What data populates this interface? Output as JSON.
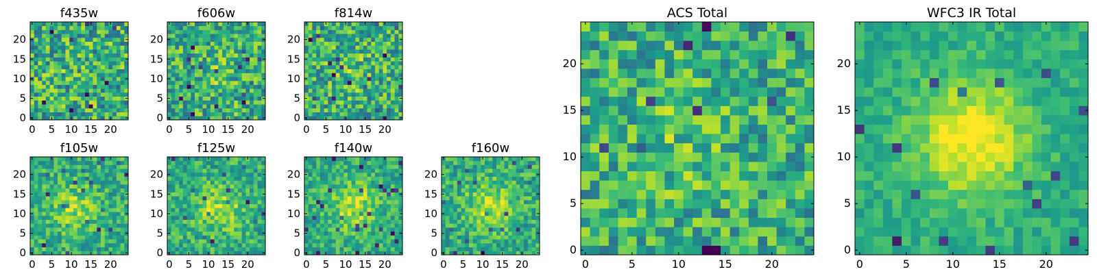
{
  "chart_data": [
    {
      "type": "heatmap",
      "title": "f435w",
      "grid_size": 25,
      "xlim": [
        0,
        24
      ],
      "ylim": [
        0,
        24
      ],
      "xticks": [
        0,
        5,
        10,
        15,
        20
      ],
      "yticks": [
        0,
        5,
        10,
        15,
        20
      ],
      "peak": [
        12,
        11
      ],
      "peak_strength": 0.05,
      "noise": 0.55,
      "seed": 11
    },
    {
      "type": "heatmap",
      "title": "f606w",
      "grid_size": 25,
      "xlim": [
        0,
        24
      ],
      "ylim": [
        0,
        24
      ],
      "xticks": [
        0,
        5,
        10,
        15,
        20
      ],
      "yticks": [
        0,
        5,
        10,
        15,
        20
      ],
      "peak": [
        12,
        12
      ],
      "peak_strength": 0.15,
      "noise": 0.5,
      "seed": 23
    },
    {
      "type": "heatmap",
      "title": "f814w",
      "grid_size": 25,
      "xlim": [
        0,
        24
      ],
      "ylim": [
        0,
        24
      ],
      "xticks": [
        0,
        5,
        10,
        15,
        20
      ],
      "yticks": [
        0,
        5,
        10,
        15,
        20
      ],
      "peak": [
        12,
        12
      ],
      "peak_strength": 0.18,
      "noise": 0.5,
      "seed": 37
    },
    {
      "type": "heatmap",
      "title": "f105w",
      "grid_size": 25,
      "xlim": [
        0,
        24
      ],
      "ylim": [
        0,
        24
      ],
      "xticks": [
        0,
        5,
        10,
        15,
        20
      ],
      "yticks": [
        0,
        5,
        10,
        15,
        20
      ],
      "peak": [
        11,
        11
      ],
      "peak_strength": 0.4,
      "noise": 0.35,
      "seed": 41
    },
    {
      "type": "heatmap",
      "title": "f125w",
      "grid_size": 25,
      "xlim": [
        0,
        24
      ],
      "ylim": [
        0,
        24
      ],
      "xticks": [
        0,
        5,
        10,
        15,
        20
      ],
      "yticks": [
        0,
        5,
        10,
        15,
        20
      ],
      "peak": [
        13,
        11
      ],
      "peak_strength": 0.45,
      "noise": 0.35,
      "seed": 53
    },
    {
      "type": "heatmap",
      "title": "f140w",
      "grid_size": 25,
      "xlim": [
        0,
        24
      ],
      "ylim": [
        0,
        24
      ],
      "xticks": [
        0,
        5,
        10,
        15,
        20
      ],
      "yticks": [
        0,
        5,
        10,
        15,
        20
      ],
      "peak": [
        12,
        12
      ],
      "peak_strength": 0.5,
      "noise": 0.32,
      "seed": 67
    },
    {
      "type": "heatmap",
      "title": "f160w",
      "grid_size": 25,
      "xlim": [
        0,
        24
      ],
      "ylim": [
        0,
        24
      ],
      "xticks": [
        0,
        5,
        10,
        15,
        20
      ],
      "yticks": [
        0,
        5,
        10,
        15,
        20
      ],
      "peak": [
        12,
        12
      ],
      "peak_strength": 0.5,
      "noise": 0.35,
      "seed": 79
    },
    {
      "type": "heatmap",
      "title": "ACS Total",
      "grid_size": 25,
      "xlim": [
        0,
        24
      ],
      "ylim": [
        0,
        24
      ],
      "xticks": [
        0,
        5,
        10,
        15,
        20
      ],
      "yticks": [
        0,
        5,
        10,
        15,
        20
      ],
      "peak": [
        10,
        11
      ],
      "peak_strength": 0.2,
      "noise": 0.45,
      "seed": 97
    },
    {
      "type": "heatmap",
      "title": "WFC3 IR Total",
      "grid_size": 25,
      "xlim": [
        0,
        24
      ],
      "ylim": [
        0,
        24
      ],
      "xticks": [
        0,
        5,
        10,
        15,
        20
      ],
      "yticks": [
        0,
        5,
        10,
        15,
        20
      ],
      "peak": [
        12,
        12
      ],
      "peak_strength": 0.75,
      "noise": 0.2,
      "seed": 131
    }
  ],
  "colormap": "viridis",
  "colors": {
    "frame": "#000000",
    "background": "#ffffff"
  }
}
